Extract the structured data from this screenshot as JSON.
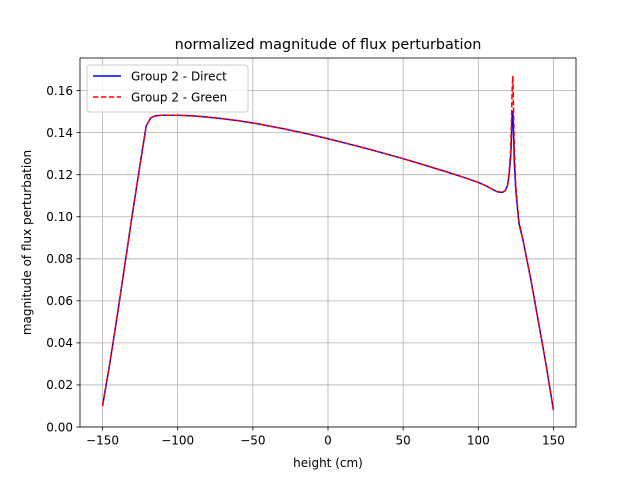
{
  "chart_data": {
    "type": "line",
    "title": "normalized magnitude of flux perturbation",
    "xlabel": "height (cm)",
    "ylabel": "magnitude of flux perturbation",
    "xlim": [
      -165,
      165
    ],
    "ylim": [
      0.0,
      0.1755
    ],
    "xticks": [
      -150,
      -100,
      -50,
      0,
      50,
      100,
      150
    ],
    "xtick_labels": [
      "−150",
      "−100",
      "−50",
      "0",
      "50",
      "100",
      "150"
    ],
    "yticks": [
      0.0,
      0.02,
      0.04,
      0.06,
      0.08,
      0.1,
      0.12,
      0.14,
      0.16
    ],
    "ytick_labels": [
      "0.00",
      "0.02",
      "0.04",
      "0.06",
      "0.08",
      "0.10",
      "0.12",
      "0.14",
      "0.16"
    ],
    "grid": true,
    "legend_position": "top-left",
    "series": [
      {
        "name": "Group 2 - Direct",
        "color": "#0000ff",
        "style": "solid",
        "x": [
          -150,
          -145,
          -140,
          -135,
          -130,
          -125,
          -121,
          -118,
          -115,
          -110,
          -100,
          -90,
          -80,
          -70,
          -60,
          -50,
          -40,
          -30,
          -20,
          -10,
          0,
          10,
          20,
          30,
          40,
          50,
          60,
          70,
          80,
          90,
          100,
          105,
          110,
          113,
          116,
          118,
          119.5,
          120.5,
          121.5,
          122,
          122.5,
          123,
          123.5,
          124,
          125,
          127,
          130,
          135,
          140,
          145,
          150
        ],
        "y": [
          0.01,
          0.031,
          0.054,
          0.078,
          0.102,
          0.125,
          0.143,
          0.147,
          0.148,
          0.1483,
          0.1483,
          0.148,
          0.1474,
          0.1466,
          0.1457,
          0.1446,
          0.1433,
          0.1419,
          0.1404,
          0.1388,
          0.1371,
          0.1353,
          0.1335,
          0.1316,
          0.1296,
          0.1276,
          0.1255,
          0.1233,
          0.1211,
          0.1188,
          0.1163,
          0.1148,
          0.1128,
          0.1118,
          0.1116,
          0.1125,
          0.115,
          0.12,
          0.128,
          0.136,
          0.148,
          0.15,
          0.138,
          0.125,
          0.112,
          0.097,
          0.088,
          0.07,
          0.05,
          0.03,
          0.008
        ]
      },
      {
        "name": "Group 2 - Green",
        "color": "#ff0000",
        "style": "dashed",
        "x": [
          -150,
          -145,
          -140,
          -135,
          -130,
          -125,
          -121,
          -118,
          -115,
          -110,
          -100,
          -90,
          -80,
          -70,
          -60,
          -50,
          -40,
          -30,
          -20,
          -10,
          0,
          10,
          20,
          30,
          40,
          50,
          60,
          70,
          80,
          90,
          100,
          105,
          110,
          113,
          116,
          118,
          119.5,
          120.5,
          121.5,
          122,
          122.5,
          123,
          123.5,
          124,
          125,
          127,
          130,
          135,
          140,
          145,
          150
        ],
        "y": [
          0.01,
          0.031,
          0.054,
          0.078,
          0.102,
          0.125,
          0.143,
          0.147,
          0.148,
          0.1483,
          0.1483,
          0.148,
          0.1474,
          0.1466,
          0.1457,
          0.1446,
          0.1433,
          0.1419,
          0.1404,
          0.1388,
          0.1371,
          0.1353,
          0.1335,
          0.1316,
          0.1296,
          0.1276,
          0.1255,
          0.1233,
          0.1211,
          0.1188,
          0.1163,
          0.1148,
          0.1128,
          0.1118,
          0.1116,
          0.1125,
          0.115,
          0.121,
          0.131,
          0.143,
          0.16,
          0.167,
          0.15,
          0.132,
          0.114,
          0.098,
          0.088,
          0.07,
          0.05,
          0.03,
          0.008
        ]
      }
    ]
  }
}
